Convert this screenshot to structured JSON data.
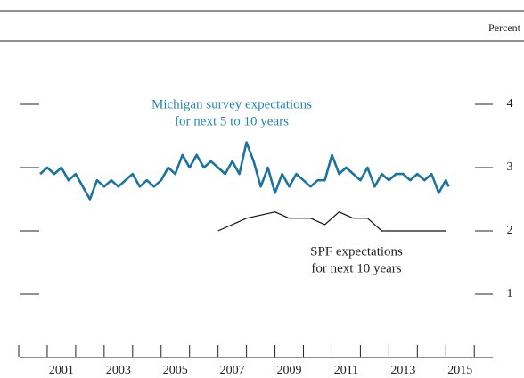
{
  "chart_data": {
    "type": "line",
    "unit_label": "Percent",
    "xlim": [
      2000,
      2016.65
    ],
    "xticks": [
      2000,
      2001,
      2002,
      2003,
      2004,
      2005,
      2006,
      2007,
      2008,
      2009,
      2010,
      2011,
      2012,
      2013,
      2014,
      2015,
      2016
    ],
    "xtick_labels": [
      {
        "value": 2001.5,
        "label": "2001"
      },
      {
        "value": 2003.5,
        "label": "2003"
      },
      {
        "value": 2005.5,
        "label": "2005"
      },
      {
        "value": 2007.5,
        "label": "2007"
      },
      {
        "value": 2009.5,
        "label": "2009"
      },
      {
        "value": 2011.5,
        "label": "2011"
      },
      {
        "value": 2013.5,
        "label": "2013"
      },
      {
        "value": 2015.5,
        "label": "2015"
      }
    ],
    "ylim": [
      0,
      5
    ],
    "yticks": [
      1,
      2,
      3,
      4
    ],
    "annotations": [
      {
        "lines": [
          "Michigan survey expectations",
          "for next 5 to 10 years"
        ],
        "color": "#2586b0"
      },
      {
        "lines": [
          "SPF expectations",
          "for next 10 years"
        ],
        "color": "#222222"
      }
    ],
    "series": [
      {
        "color": "#1b74a0",
        "x": [
          2000.75,
          2001,
          2001.25,
          2001.5,
          2001.75,
          2002,
          2002.25,
          2002.5,
          2002.75,
          2003,
          2003.25,
          2003.5,
          2003.75,
          2004,
          2004.25,
          2004.5,
          2004.75,
          2005,
          2005.25,
          2005.5,
          2005.75,
          2006,
          2006.25,
          2006.5,
          2006.75,
          2007,
          2007.25,
          2007.5,
          2007.75,
          2008,
          2008.25,
          2008.5,
          2008.75,
          2009,
          2009.25,
          2009.5,
          2009.75,
          2010,
          2010.25,
          2010.5,
          2010.75,
          2011,
          2011.25,
          2011.5,
          2011.75,
          2012,
          2012.25,
          2012.5,
          2012.75,
          2013,
          2013.25,
          2013.5,
          2013.75,
          2014,
          2014.25,
          2014.5,
          2014.75,
          2015,
          2015.1
        ],
        "values": [
          2.9,
          3.0,
          2.9,
          3.0,
          2.8,
          2.9,
          2.7,
          2.5,
          2.8,
          2.7,
          2.8,
          2.7,
          2.8,
          2.9,
          2.7,
          2.8,
          2.7,
          2.8,
          3.0,
          2.9,
          3.2,
          3.0,
          3.2,
          3.0,
          3.1,
          3.0,
          2.9,
          3.1,
          2.9,
          3.4,
          3.1,
          2.7,
          3.0,
          2.6,
          2.9,
          2.7,
          2.9,
          2.8,
          2.7,
          2.8,
          2.8,
          3.2,
          2.9,
          3.0,
          2.9,
          2.8,
          3.0,
          2.7,
          2.9,
          2.8,
          2.9,
          2.9,
          2.8,
          2.9,
          2.8,
          2.9,
          2.6,
          2.8,
          2.7
        ]
      },
      {
        "color": "#111111",
        "x": [
          2007,
          2007.5,
          2008,
          2009,
          2009.5,
          2010.25,
          2010.75,
          2011.25,
          2011.75,
          2012.25,
          2012.75,
          2015
        ],
        "values": [
          2.0,
          2.1,
          2.2,
          2.3,
          2.2,
          2.2,
          2.1,
          2.3,
          2.2,
          2.2,
          2.0,
          2.0
        ]
      }
    ]
  }
}
